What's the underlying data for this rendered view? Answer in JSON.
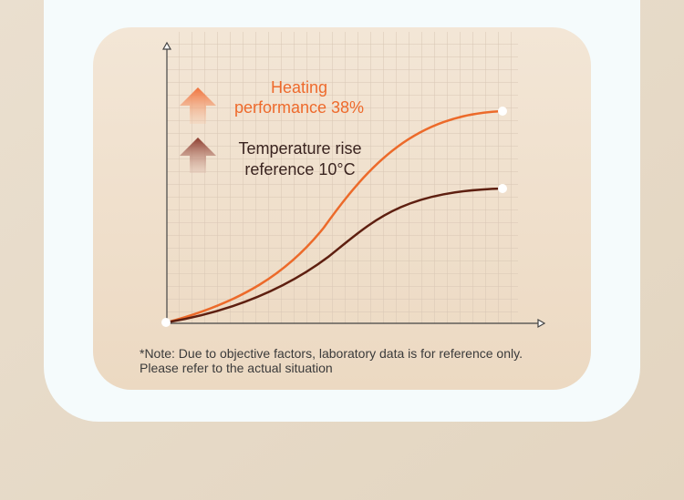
{
  "labels": [
    {
      "lines": [
        "Heating",
        "performance 38%"
      ]
    },
    {
      "lines": [
        "Temperature rise",
        "reference 10°C"
      ]
    }
  ],
  "note": [
    "*Note: Due to objective factors, laboratory data is for reference only.",
    "Please refer to the actual situation"
  ]
}
